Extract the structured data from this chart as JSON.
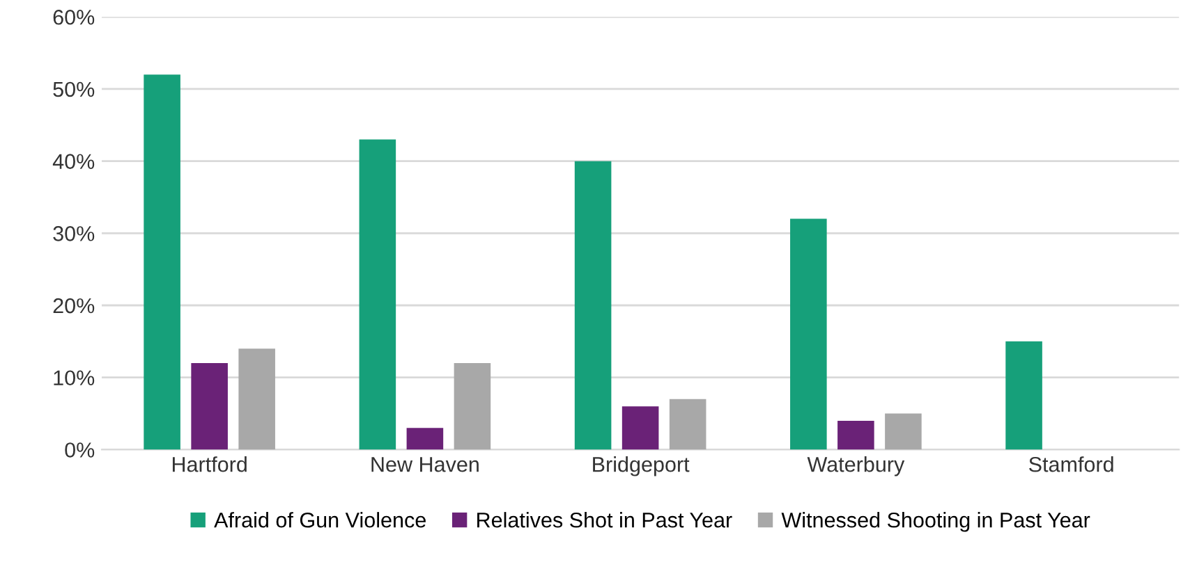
{
  "chart_data": {
    "type": "bar",
    "categories": [
      "Hartford",
      "New Haven",
      "Bridgeport",
      "Waterbury",
      "Stamford"
    ],
    "series": [
      {
        "name": "Afraid of Gun Violence",
        "color": "#16a07a",
        "values": [
          52,
          43,
          40,
          32,
          15
        ]
      },
      {
        "name": "Relatives Shot in Past Year",
        "color": "#6a2277",
        "values": [
          12,
          3,
          6,
          4,
          0
        ]
      },
      {
        "name": "Witnessed Shooting in Past Year",
        "color": "#a8a8a8",
        "values": [
          14,
          12,
          7,
          5,
          0
        ]
      }
    ],
    "ylim": [
      0,
      60
    ],
    "yticks": [
      {
        "value": 0,
        "label": "0%"
      },
      {
        "value": 10,
        "label": "10%"
      },
      {
        "value": 20,
        "label": "20%"
      },
      {
        "value": 30,
        "label": "30%"
      },
      {
        "value": 40,
        "label": "40%"
      },
      {
        "value": 50,
        "label": "50%"
      },
      {
        "value": 60,
        "label": "60%"
      }
    ],
    "grid": "y",
    "legend": "bottom"
  }
}
